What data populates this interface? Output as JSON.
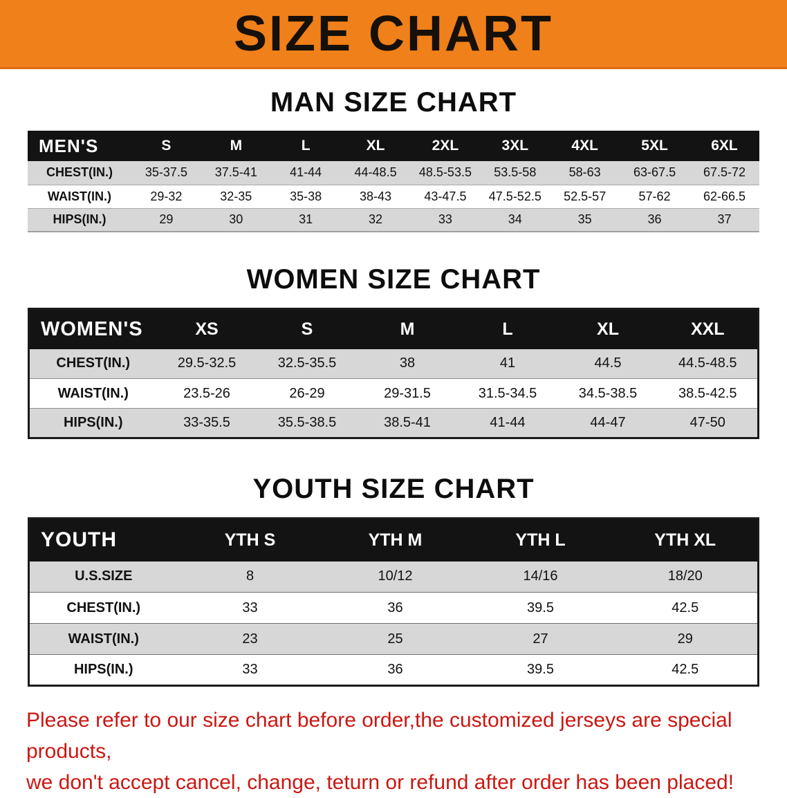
{
  "banner": {
    "title": "SIZE CHART"
  },
  "colors": {
    "banner_bg": "#f08019",
    "table_header_bg": "#131313",
    "row_shaded": "#d7d7d7",
    "note_red": "#cb1712"
  },
  "men": {
    "heading": "MAN SIZE CHART",
    "header": [
      "MEN'S",
      "S",
      "M",
      "L",
      "XL",
      "2XL",
      "3XL",
      "4XL",
      "5XL",
      "6XL"
    ],
    "rows": [
      {
        "label": "CHEST(IN.)",
        "values": [
          "35-37.5",
          "37.5-41",
          "41-44",
          "44-48.5",
          "48.5-53.5",
          "53.5-58",
          "58-63",
          "63-67.5",
          "67.5-72"
        ]
      },
      {
        "label": "WAIST(IN.)",
        "values": [
          "29-32",
          "32-35",
          "35-38",
          "38-43",
          "43-47.5",
          "47.5-52.5",
          "52.5-57",
          "57-62",
          "62-66.5"
        ]
      },
      {
        "label": "HIPS(IN.)",
        "values": [
          "29",
          "30",
          "31",
          "32",
          "33",
          "34",
          "35",
          "36",
          "37"
        ]
      }
    ]
  },
  "women": {
    "heading": "WOMEN SIZE CHART",
    "header": [
      "WOMEN'S",
      "XS",
      "S",
      "M",
      "L",
      "XL",
      "XXL"
    ],
    "rows": [
      {
        "label": "CHEST(IN.)",
        "values": [
          "29.5-32.5",
          "32.5-35.5",
          "38",
          "41",
          "44.5",
          "44.5-48.5"
        ]
      },
      {
        "label": "WAIST(IN.)",
        "values": [
          "23.5-26",
          "26-29",
          "29-31.5",
          "31.5-34.5",
          "34.5-38.5",
          "38.5-42.5"
        ]
      },
      {
        "label": "HIPS(IN.)",
        "values": [
          "33-35.5",
          "35.5-38.5",
          "38.5-41",
          "41-44",
          "44-47",
          "47-50"
        ]
      }
    ]
  },
  "youth": {
    "heading": "YOUTH SIZE CHART",
    "header": [
      "YOUTH",
      "YTH S",
      "YTH M",
      "YTH L",
      "YTH XL"
    ],
    "rows": [
      {
        "label": "U.S.SIZE",
        "values": [
          "8",
          "10/12",
          "14/16",
          "18/20"
        ]
      },
      {
        "label": "CHEST(IN.)",
        "values": [
          "33",
          "36",
          "39.5",
          "42.5"
        ]
      },
      {
        "label": "WAIST(IN.)",
        "values": [
          "23",
          "25",
          "27",
          "29"
        ]
      },
      {
        "label": "HIPS(IN.)",
        "values": [
          "33",
          "36",
          "39.5",
          "42.5"
        ]
      }
    ]
  },
  "note": {
    "line1": "Please refer to our size chart before order,the customized jerseys are special products,",
    "line2": "we don't accept cancel, change, teturn or refund after order has been placed!"
  }
}
